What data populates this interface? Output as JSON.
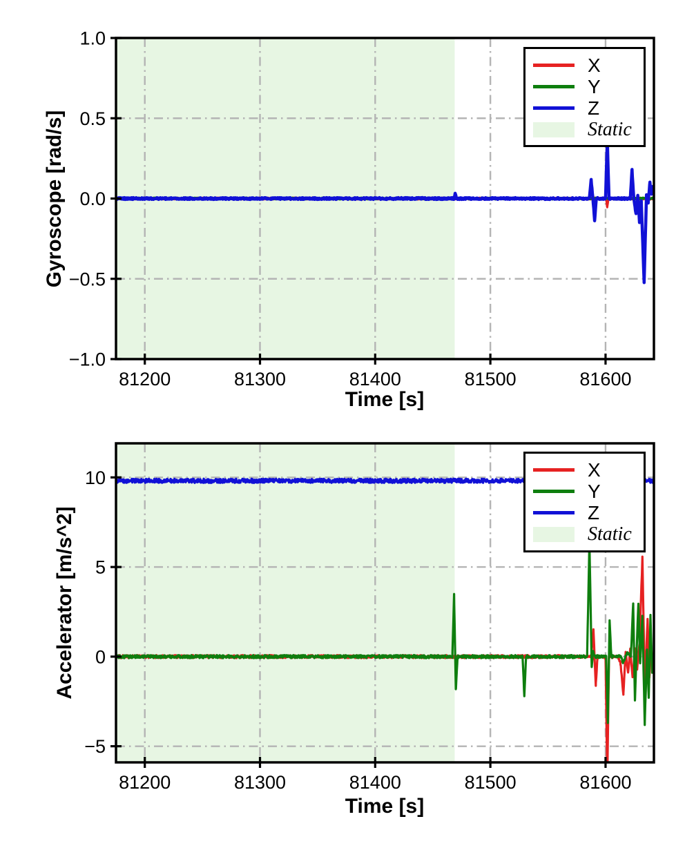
{
  "figure": {
    "background": "#ffffff",
    "frame_color": "#000000"
  },
  "chart_data": [
    {
      "type": "line",
      "title": "",
      "xlabel": "Time [s]",
      "ylabel": "Gyroscope [rad/s]",
      "xlim": [
        81175,
        81642
      ],
      "ylim": [
        -1.0,
        1.0
      ],
      "xticks": [
        81200,
        81300,
        81400,
        81500,
        81600
      ],
      "xtick_labels": [
        "81200",
        "81300",
        "81400",
        "81500",
        "81600"
      ],
      "yticks": [
        1.0,
        0.5,
        0.0,
        -0.5,
        -1.0
      ],
      "ytick_labels": [
        "1.0",
        "0.5",
        "0.0",
        "−0.5",
        "−1.0"
      ],
      "grid": true,
      "grid_style": "dash-dot",
      "grid_color": "#b4b4b4",
      "static_span": {
        "label": "Static",
        "x0": 81175,
        "x1": 81469,
        "color": "#e7f6e3"
      },
      "legend": {
        "position": "upper right",
        "entries": [
          {
            "label": "X",
            "color": "#e62222",
            "type": "line"
          },
          {
            "label": "Y",
            "color": "#0e7e0e",
            "type": "line"
          },
          {
            "label": "Z",
            "color": "#1111d6",
            "type": "line"
          },
          {
            "label": "Static",
            "color": "#e7f6e3",
            "type": "patch",
            "italic": true
          }
        ]
      },
      "series": [
        {
          "name": "X",
          "color": "#e62222",
          "width": 3,
          "noise": 0.006,
          "points": [
            [
              81175,
              0
            ],
            [
              81600.5,
              0
            ],
            [
              81601.5,
              -0.06
            ],
            [
              81602.5,
              0
            ],
            [
              81642,
              0
            ]
          ]
        },
        {
          "name": "Y",
          "color": "#0e7e0e",
          "width": 3,
          "noise": 0.006,
          "points": [
            [
              81175,
              0
            ],
            [
              81642,
              0
            ]
          ]
        },
        {
          "name": "Z",
          "color": "#1111d6",
          "width": 4.5,
          "noise": 0.006,
          "points": [
            [
              81175,
              0
            ],
            [
              81468.5,
              0
            ],
            [
              81469.5,
              0.03
            ],
            [
              81470.5,
              0
            ],
            [
              81586,
              0
            ],
            [
              81587.5,
              0.12
            ],
            [
              81589,
              0
            ],
            [
              81590.5,
              -0.14
            ],
            [
              81592,
              0
            ],
            [
              81600,
              0
            ],
            [
              81601.5,
              0.37
            ],
            [
              81603,
              0
            ],
            [
              81621.5,
              0
            ],
            [
              81623,
              0.18
            ],
            [
              81624.5,
              0
            ],
            [
              81626.5,
              -0.1
            ],
            [
              81628,
              0.02
            ],
            [
              81629.5,
              -0.15
            ],
            [
              81631,
              -0.02
            ],
            [
              81633.5,
              -0.52
            ],
            [
              81635.5,
              0.02
            ],
            [
              81637,
              -0.03
            ],
            [
              81638.5,
              0.1
            ],
            [
              81640,
              0.03
            ],
            [
              81641,
              0.08
            ],
            [
              81642,
              0.04
            ]
          ]
        }
      ]
    },
    {
      "type": "line",
      "title": "",
      "xlabel": "Time [s]",
      "ylabel": "Accelerator [m/s^2]",
      "xlim": [
        81175,
        81642
      ],
      "ylim": [
        -5.9,
        11.9
      ],
      "xticks": [
        81200,
        81300,
        81400,
        81500,
        81600
      ],
      "xtick_labels": [
        "81200",
        "81300",
        "81400",
        "81500",
        "81600"
      ],
      "yticks": [
        10,
        5,
        0,
        -5
      ],
      "ytick_labels": [
        "10",
        "5",
        "0",
        "−5"
      ],
      "grid": true,
      "grid_style": "dash-dot",
      "grid_color": "#b4b4b4",
      "static_span": {
        "label": "Static",
        "x0": 81175,
        "x1": 81469,
        "color": "#e7f6e3"
      },
      "legend": {
        "position": "upper right",
        "entries": [
          {
            "label": "X",
            "color": "#e62222",
            "type": "line"
          },
          {
            "label": "Y",
            "color": "#0e7e0e",
            "type": "line"
          },
          {
            "label": "Z",
            "color": "#1111d6",
            "type": "line"
          },
          {
            "label": "Static",
            "color": "#e7f6e3",
            "type": "patch",
            "italic": true
          }
        ]
      },
      "series": [
        {
          "name": "X",
          "color": "#e62222",
          "width": 3.2,
          "noise": 0.085,
          "points": [
            [
              81175,
              0
            ],
            [
              81587.5,
              0
            ],
            [
              81589.5,
              1.45
            ],
            [
              81591.5,
              -1.6
            ],
            [
              81593,
              0
            ],
            [
              81600,
              0
            ],
            [
              81601.5,
              -7
            ],
            [
              81603,
              0
            ],
            [
              81611,
              0
            ],
            [
              81613,
              -0.4
            ],
            [
              81615.5,
              -2.1
            ],
            [
              81617.5,
              0.3
            ],
            [
              81619.5,
              -0.9
            ],
            [
              81621.5,
              0.4
            ],
            [
              81623.5,
              -1.2
            ],
            [
              81625.5,
              0.5
            ],
            [
              81627.5,
              -0.7
            ],
            [
              81629.5,
              0.8
            ],
            [
              81632,
              5.5
            ],
            [
              81634,
              -1.5
            ],
            [
              81635.5,
              0.5
            ],
            [
              81636.5,
              2.1
            ],
            [
              81638,
              -1.2
            ],
            [
              81639.5,
              0.6
            ],
            [
              81641,
              -0.6
            ],
            [
              81642,
              0.2
            ]
          ]
        },
        {
          "name": "Y",
          "color": "#0e7e0e",
          "width": 3.2,
          "noise": 0.085,
          "points": [
            [
              81175,
              0
            ],
            [
              81467,
              0
            ],
            [
              81468.5,
              3.5
            ],
            [
              81470,
              -1.9
            ],
            [
              81471.5,
              0
            ],
            [
              81528,
              0
            ],
            [
              81529.5,
              -2.25
            ],
            [
              81531,
              0
            ],
            [
              81584,
              0
            ],
            [
              81586,
              6.4
            ],
            [
              81588,
              -0.6
            ],
            [
              81589,
              0.3
            ],
            [
              81590.5,
              0
            ],
            [
              81600.5,
              0
            ],
            [
              81602,
              -3.7
            ],
            [
              81603.5,
              2.0
            ],
            [
              81605,
              0
            ],
            [
              81613,
              0
            ],
            [
              81615,
              -0.3
            ],
            [
              81619,
              0.2
            ],
            [
              81622,
              0
            ],
            [
              81624,
              3.0
            ],
            [
              81625.5,
              -2.5
            ],
            [
              81627,
              0.3
            ],
            [
              81628.5,
              3.0
            ],
            [
              81630,
              -0.4
            ],
            [
              81632,
              2.3
            ],
            [
              81634,
              -3.8
            ],
            [
              81636,
              0.4
            ],
            [
              81637.5,
              -2.3
            ],
            [
              81639,
              2.3
            ],
            [
              81640.5,
              -0.9
            ],
            [
              81642,
              0.2
            ]
          ]
        },
        {
          "name": "Z",
          "color": "#1111d6",
          "width": 3.5,
          "noise": 0.11,
          "points": [
            [
              81175,
              9.81
            ],
            [
              81642,
              9.81
            ]
          ]
        }
      ]
    }
  ]
}
